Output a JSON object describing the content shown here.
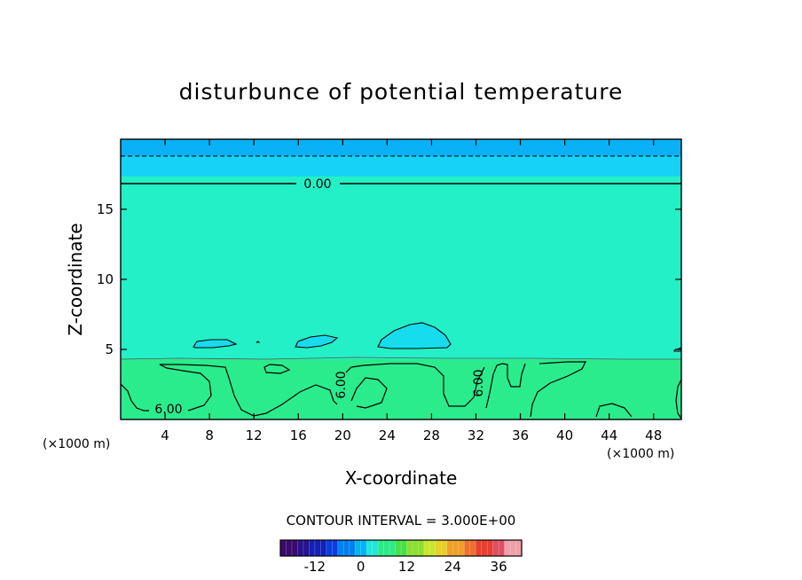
{
  "chart_data": {
    "type": "heatmap",
    "title": "disturbunce of potential temperature",
    "xlabel": "X-coordinate",
    "ylabel": "Z-coordinate",
    "x_unit_left": "(×1000 m)",
    "x_unit_right": "(×1000 m)",
    "xlim": [
      0,
      50.5
    ],
    "ylim": [
      0,
      20
    ],
    "x_ticks": [
      4,
      8,
      12,
      16,
      20,
      24,
      28,
      32,
      36,
      40,
      44,
      48
    ],
    "y_ticks": [
      5,
      10,
      15
    ],
    "contour_interval_text": "CONTOUR INTERVAL = 3.000E+00",
    "contour_labels": [
      {
        "text": "0.00",
        "x": 17.5,
        "z": 16.8
      },
      {
        "text": "6.00",
        "x": 4.3,
        "z": 0.65
      },
      {
        "text": "6.00",
        "x": 20.0,
        "z": 2.3
      },
      {
        "text": "6.00",
        "x": 32.4,
        "z": 2.6
      }
    ],
    "colorbar": {
      "ticks": [
        "-12",
        "0",
        "12",
        "24",
        "36"
      ],
      "range": [
        -21,
        42
      ],
      "colors": [
        "#3b0a6e",
        "#26118f",
        "#1321b8",
        "#0a3ee0",
        "#007ff0",
        "#00b4f6",
        "#1ee8da",
        "#2dea88",
        "#48e048",
        "#8ae030",
        "#c8e630",
        "#e8d028",
        "#f0a028",
        "#ee7030",
        "#e64030",
        "#e05060",
        "#f0a0a8"
      ]
    },
    "layers": [
      {
        "name": "upper",
        "z": [
          18.8,
          20
        ],
        "color": "#0ab1f7"
      },
      {
        "name": "upper-mid",
        "z": [
          17.4,
          18.8
        ],
        "color": "#16d2f4"
      },
      {
        "name": "mid",
        "z": [
          4.4,
          17.4
        ],
        "color": "#23f0c6"
      },
      {
        "name": "lower",
        "z": [
          0,
          4.4
        ],
        "color": "#2bec8c"
      }
    ]
  }
}
